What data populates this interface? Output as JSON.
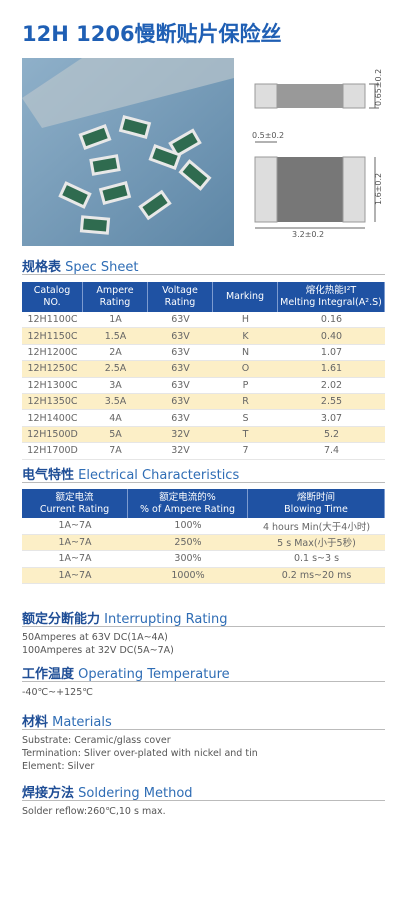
{
  "header": {
    "title": "12H 1206慢断贴片保险丝"
  },
  "dimensions": {
    "height": "0.65±0.2",
    "end_width": "0.5±0.2",
    "width": "1.6±0.2",
    "length": "3.2±0.2"
  },
  "spec_sheet": {
    "heading_zh": "规格表",
    "heading_en": "Spec Sheet",
    "columns": [
      [
        "Catalog",
        "NO."
      ],
      [
        "Ampere",
        "Rating"
      ],
      [
        "Voltage",
        "Rating"
      ],
      [
        "Marking"
      ],
      [
        "熔化热能I²T",
        "Melting Integral(A².S)"
      ]
    ],
    "rows": [
      [
        "12H1100C",
        "1A",
        "63V",
        "H",
        "0.16"
      ],
      [
        "12H1150C",
        "1.5A",
        "63V",
        "K",
        "0.40"
      ],
      [
        "12H1200C",
        "2A",
        "63V",
        "N",
        "1.07"
      ],
      [
        "12H1250C",
        "2.5A",
        "63V",
        "O",
        "1.61"
      ],
      [
        "12H1300C",
        "3A",
        "63V",
        "P",
        "2.02"
      ],
      [
        "12H1350C",
        "3.5A",
        "63V",
        "R",
        "2.55"
      ],
      [
        "12H1400C",
        "4A",
        "63V",
        "S",
        "3.07"
      ],
      [
        "12H1500D",
        "5A",
        "32V",
        "T",
        "5.2"
      ],
      [
        "12H1700D",
        "7A",
        "32V",
        "7",
        "7.4"
      ]
    ]
  },
  "electrical": {
    "heading_zh": "电气特性",
    "heading_en": "Electrical Characteristics",
    "columns": [
      [
        "额定电流",
        "Current Rating"
      ],
      [
        "额定电流的%",
        "% of Ampere Rating"
      ],
      [
        "熔断时间",
        "Blowing Time"
      ]
    ],
    "rows": [
      [
        "1A~7A",
        "100%",
        "4 hours Min(大于4小时)"
      ],
      [
        "1A~7A",
        "250%",
        "5 s Max(小于5秒)"
      ],
      [
        "1A~7A",
        "300%",
        "0.1 s~3 s"
      ],
      [
        "1A~7A",
        "1000%",
        "0.2 ms~20 ms"
      ]
    ]
  },
  "sections": [
    {
      "heading_zh": "额定分断能力",
      "heading_en": "Interrupting Rating",
      "lines": [
        "50Amperes at 63V DC(1A~4A)",
        "100Amperes at 32V DC(5A~7A)"
      ]
    },
    {
      "heading_zh": "工作温度",
      "heading_en": "Operating Temperature",
      "lines": [
        "-40℃~+125℃"
      ]
    },
    {
      "heading_zh": "材料",
      "heading_en": "Materials",
      "lines": [
        "Substrate: Ceramic/glass cover",
        "Termination: Sliver over-plated with nickel and tin",
        "Element: Silver"
      ]
    },
    {
      "heading_zh": "焊接方法",
      "heading_en": "Soldering Method",
      "lines": [
        "Solder reflow:260℃,10 s max."
      ]
    }
  ]
}
